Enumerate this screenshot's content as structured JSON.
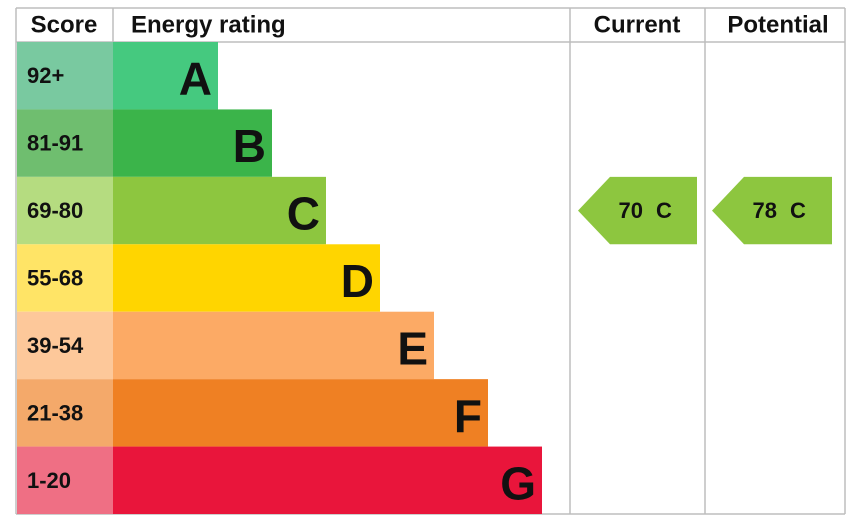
{
  "header": {
    "score": "Score",
    "rating": "Energy rating",
    "current": "Current",
    "potential": "Potential"
  },
  "bands": [
    {
      "score": "92+",
      "letter": "A"
    },
    {
      "score": "81-91",
      "letter": "B"
    },
    {
      "score": "69-80",
      "letter": "C"
    },
    {
      "score": "55-68",
      "letter": "D"
    },
    {
      "score": "39-54",
      "letter": "E"
    },
    {
      "score": "21-38",
      "letter": "F"
    },
    {
      "score": "1-20",
      "letter": "G"
    }
  ],
  "current": {
    "value": 70,
    "letter": "C"
  },
  "potential": {
    "value": 78,
    "letter": "C"
  }
}
